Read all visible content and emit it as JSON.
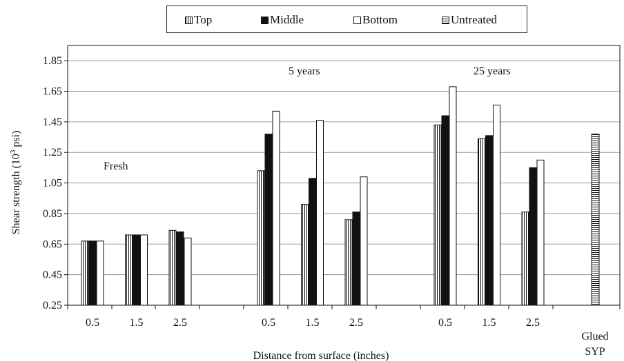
{
  "chart_data": {
    "type": "bar",
    "ylabel_main": "Shear strength (10",
    "ylabel_sup": "3",
    "ylabel_unit": " psi)",
    "xlabel": "Distance from surface (inches)",
    "ylim": [
      0.25,
      1.95
    ],
    "yticks": [
      "0.25",
      "0.45",
      "0.65",
      "0.85",
      "1.05",
      "1.25",
      "1.45",
      "1.65",
      "1.85"
    ],
    "grid": true,
    "legend_position": "top",
    "series": [
      {
        "name": "Top",
        "pattern": "vertical-lines"
      },
      {
        "name": "Middle",
        "pattern": "solid-black"
      },
      {
        "name": "Bottom",
        "pattern": "white"
      },
      {
        "name": "Untreated",
        "pattern": "horizontal-lines"
      }
    ],
    "groups": [
      {
        "annotation": "Fresh",
        "categories": [
          {
            "label": "0.5",
            "values": [
              0.67,
              0.67,
              0.67
            ]
          },
          {
            "label": "1.5",
            "values": [
              0.71,
              0.71,
              0.71
            ]
          },
          {
            "label": "2.5",
            "values": [
              0.74,
              0.73,
              0.69
            ]
          }
        ]
      },
      {
        "annotation": "5 years",
        "categories": [
          {
            "label": "0.5",
            "values": [
              1.13,
              1.37,
              1.52
            ]
          },
          {
            "label": "1.5",
            "values": [
              0.91,
              1.08,
              1.46
            ]
          },
          {
            "label": "2.5",
            "values": [
              0.81,
              0.86,
              1.09
            ]
          }
        ]
      },
      {
        "annotation": "25 years",
        "categories": [
          {
            "label": "0.5",
            "values": [
              1.43,
              1.49,
              1.68
            ]
          },
          {
            "label": "1.5",
            "values": [
              1.34,
              1.36,
              1.56
            ]
          },
          {
            "label": "2.5",
            "values": [
              0.86,
              1.15,
              1.2
            ]
          }
        ]
      }
    ],
    "untreated": {
      "label_line1": "Glued",
      "label_line2": "SYP",
      "value": 1.37
    }
  },
  "colors": {
    "black": "#111111",
    "white": "#ffffff",
    "grid": "#9a9a9a"
  }
}
